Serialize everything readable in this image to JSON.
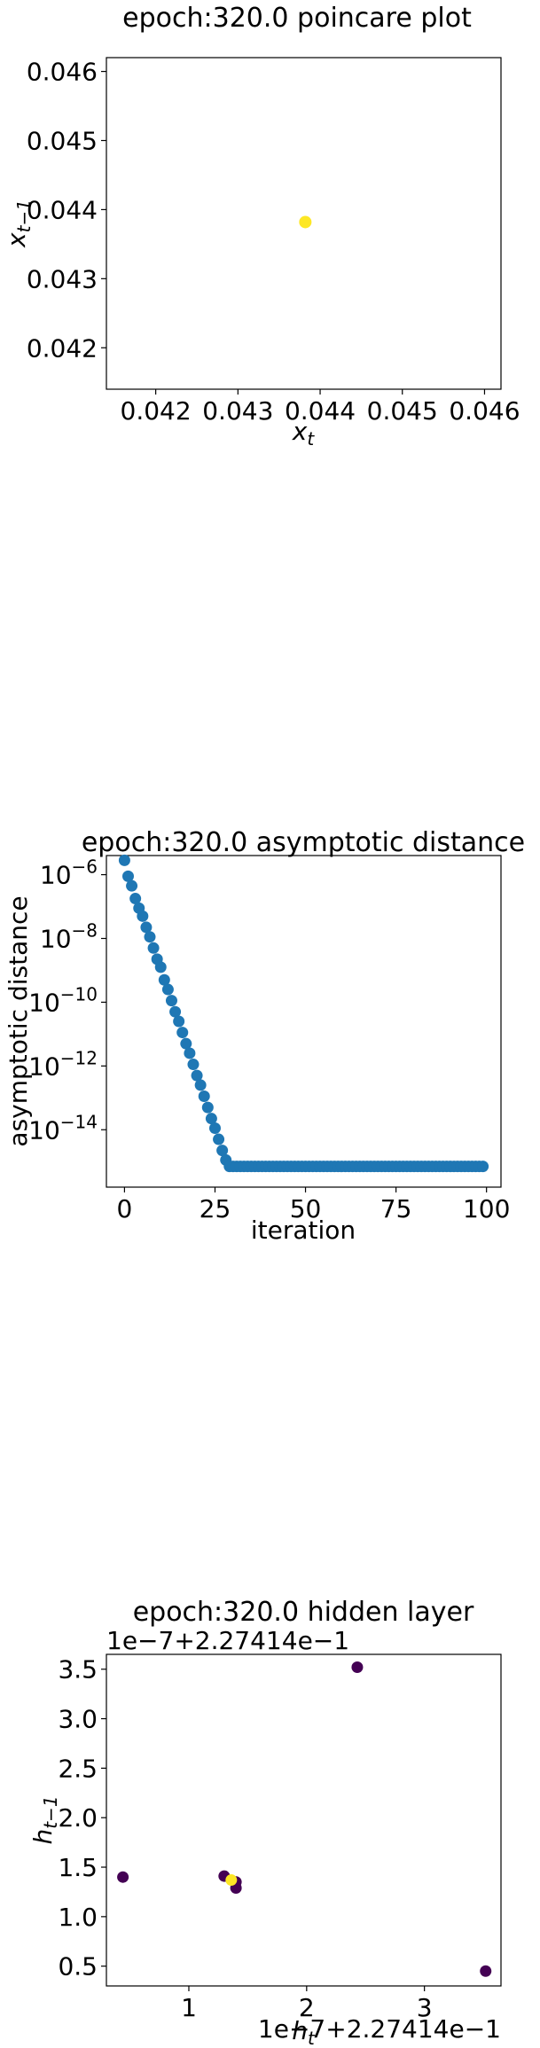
{
  "chart_data": [
    {
      "type": "scatter",
      "title": "epoch:320.0 poincare plot",
      "xlabel": "x_t",
      "ylabel": "x_{t-1}",
      "xlim": [
        0.0414,
        0.0462
      ],
      "ylim": [
        0.0414,
        0.0462
      ],
      "xticks": [
        "0.042",
        "0.043",
        "0.044",
        "0.045",
        "0.046"
      ],
      "xtick_values": [
        0.042,
        0.043,
        0.044,
        0.045,
        0.046
      ],
      "yticks": [
        "0.042",
        "0.043",
        "0.044",
        "0.045",
        "0.046"
      ],
      "ytick_values": [
        0.042,
        0.043,
        0.044,
        0.045,
        0.046
      ],
      "points": [
        {
          "x": 0.04382,
          "y": 0.04382,
          "color": "#fde725"
        }
      ],
      "grid": false
    },
    {
      "type": "scatter",
      "title": "epoch:320.0 asymptotic distance",
      "xlabel": "iteration",
      "ylabel": "asymptotic distance",
      "yscale": "log",
      "xlim": [
        -5,
        104
      ],
      "ylim_log10": [
        -15.8,
        -5.4
      ],
      "xticks": [
        "0",
        "25",
        "50",
        "75",
        "100"
      ],
      "xtick_values": [
        0,
        25,
        50,
        75,
        100
      ],
      "yticks": [
        "10^-6",
        "10^-8",
        "10^-10",
        "10^-12",
        "10^-14"
      ],
      "ytick_values_log10": [
        -6,
        -8,
        -10,
        -12,
        -14
      ],
      "color": "#1f77b4",
      "x": [
        0,
        1,
        2,
        3,
        4,
        5,
        6,
        7,
        8,
        9,
        10,
        11,
        12,
        13,
        14,
        15,
        16,
        17,
        18,
        19,
        20,
        21,
        22,
        23,
        24,
        25,
        26,
        27,
        28,
        29,
        30,
        31,
        32,
        33,
        34,
        35,
        36,
        37,
        38,
        39,
        40,
        41,
        42,
        43,
        44,
        45,
        46,
        47,
        48,
        49,
        50,
        51,
        52,
        53,
        54,
        55,
        56,
        57,
        58,
        59,
        60,
        61,
        62,
        63,
        64,
        65,
        66,
        67,
        68,
        69,
        70,
        71,
        72,
        73,
        74,
        75,
        76,
        77,
        78,
        79,
        80,
        81,
        82,
        83,
        84,
        85,
        86,
        87,
        88,
        89,
        90,
        91,
        92,
        93,
        94,
        95,
        96,
        97,
        98,
        99
      ],
      "y_log10": [
        -5.55,
        -6.05,
        -6.35,
        -6.75,
        -7.05,
        -7.3,
        -7.65,
        -7.95,
        -8.3,
        -8.65,
        -8.9,
        -9.3,
        -9.6,
        -9.95,
        -10.3,
        -10.6,
        -10.95,
        -11.3,
        -11.6,
        -11.95,
        -12.3,
        -12.6,
        -12.95,
        -13.3,
        -13.65,
        -13.95,
        -14.3,
        -14.65,
        -14.95,
        -15.15,
        -15.15,
        -15.15,
        -15.15,
        -15.15,
        -15.15,
        -15.15,
        -15.15,
        -15.15,
        -15.15,
        -15.15,
        -15.15,
        -15.15,
        -15.15,
        -15.15,
        -15.15,
        -15.15,
        -15.15,
        -15.15,
        -15.15,
        -15.15,
        -15.15,
        -15.15,
        -15.15,
        -15.15,
        -15.15,
        -15.15,
        -15.15,
        -15.15,
        -15.15,
        -15.15,
        -15.15,
        -15.15,
        -15.15,
        -15.15,
        -15.15,
        -15.15,
        -15.15,
        -15.15,
        -15.15,
        -15.15,
        -15.15,
        -15.15,
        -15.15,
        -15.15,
        -15.15,
        -15.15,
        -15.15,
        -15.15,
        -15.15,
        -15.15,
        -15.15,
        -15.15,
        -15.15,
        -15.15,
        -15.15,
        -15.15,
        -15.15,
        -15.15,
        -15.15,
        -15.15,
        -15.15,
        -15.15,
        -15.15,
        -15.15,
        -15.15,
        -15.15,
        -15.15,
        -15.15,
        -15.15,
        -15.15
      ],
      "grid": false
    },
    {
      "type": "scatter",
      "title": "epoch:320.0 hidden layer",
      "xlabel": "h_t",
      "ylabel": "h_{t-1}",
      "x_offset_text": "1e−7+2.27414e−1",
      "y_offset_text": "1e−7+2.27414e−1",
      "xlim": [
        0.3,
        3.65
      ],
      "ylim": [
        0.3,
        3.65
      ],
      "xticks": [
        "1",
        "2",
        "3"
      ],
      "xtick_values": [
        1,
        2,
        3
      ],
      "yticks": [
        "0.5",
        "1.0",
        "1.5",
        "2.0",
        "2.5",
        "3.0",
        "3.5"
      ],
      "ytick_values": [
        0.5,
        1.0,
        1.5,
        2.0,
        2.5,
        3.0,
        3.5
      ],
      "points": [
        {
          "x": 2.43,
          "y": 3.52,
          "color": "#440154"
        },
        {
          "x": 0.44,
          "y": 1.4,
          "color": "#440154"
        },
        {
          "x": 1.3,
          "y": 1.41,
          "color": "#440154"
        },
        {
          "x": 1.4,
          "y": 1.35,
          "color": "#440154"
        },
        {
          "x": 1.4,
          "y": 1.29,
          "color": "#440154"
        },
        {
          "x": 3.52,
          "y": 0.45,
          "color": "#440154"
        },
        {
          "x": 1.36,
          "y": 1.37,
          "color": "#fde725"
        }
      ],
      "grid": false
    }
  ]
}
